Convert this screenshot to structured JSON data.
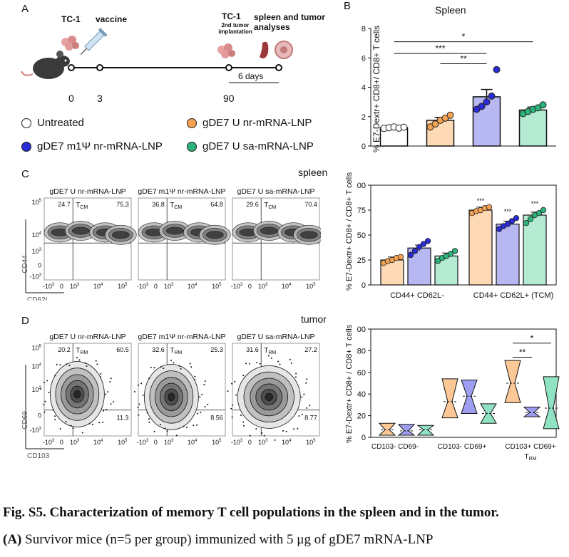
{
  "panelA": {
    "letter": "A",
    "events": [
      {
        "label": "TC-1",
        "day": "0"
      },
      {
        "label": "vaccine",
        "day": "3"
      },
      {
        "label": "TC-1",
        "sub": "2nd tumor implantation",
        "day": "90"
      },
      {
        "label": "spleen and tumor analyses",
        "day": ""
      }
    ],
    "interval_label": "6 days",
    "legend": [
      {
        "name": "Untreated",
        "color": "#ffffff"
      },
      {
        "name": "gDE7 U nr-mRNA-LNP",
        "color": "#f5a251"
      },
      {
        "name": "gDE7 m1Ψ nr-mRNA-LNP",
        "color": "#2b2bd6"
      },
      {
        "name": "gDE7 U sa-mRNA-LNP",
        "color": "#2db37a"
      }
    ]
  },
  "panelB": {
    "letter": "B",
    "title": "Spleen",
    "ylabel": "% E7-Dextr+ CD8+/ CD8+ T cells",
    "sig": [
      "*",
      "***",
      "**"
    ]
  },
  "panelC": {
    "letter": "C",
    "tissue": "spleen",
    "flow_titles": [
      "gDE7 U nr-mRNA-LNP",
      "gDE7 m1Ψ nr-mRNA-LNP",
      "gDE7 U sa-mRNA-LNP"
    ],
    "quad_ul": [
      "24.7",
      "36.8",
      "29.6"
    ],
    "quad_ur": [
      "75.3",
      "64.8",
      "70.4"
    ],
    "gate_label": "TCM",
    "xaxis": "CD62L",
    "yaxis": "CD44",
    "bar_ylabel": "% E7-Dextr+ CD8+ / CD8+ T cells",
    "groups": [
      "CD44+ CD62L-",
      "CD44+ CD62L+ (TCM)"
    ],
    "sig": [
      "***",
      "***",
      "***"
    ]
  },
  "panelD": {
    "letter": "D",
    "tissue": "tumor",
    "flow_titles": [
      "gDE7 U nr-mRNA-LNP",
      "gDE7 m1Ψ nr-mRNA-LNP",
      "gDE7 U sa-mRNA-LNP"
    ],
    "quad_ul": [
      "20.2",
      "32.6",
      "31.6"
    ],
    "quad_ur": [
      "60.5",
      "25.3",
      "27.2"
    ],
    "quad_lr": [
      "11.3",
      "8.56",
      "8.77"
    ],
    "gate_label": "TRM",
    "xaxis": "CD103",
    "yaxis": "CD69",
    "violin_ylabel": "% E7-Dextr+ CD8+ / CD8+ T cells",
    "groups": [
      "CD103- CD69-",
      "CD103- CD69+",
      "CD103+ CD69+ TRM"
    ],
    "sig": [
      "**",
      "*"
    ]
  },
  "caption": {
    "title": "Fig. S5. Characterization of memory T cell populations in the spleen and in the tumor.",
    "line2_bold": "(A)",
    "line2_text": " Survivor mice (n=5 per group) immunized with 5 μg of gDE7 mRNA-LNP"
  },
  "chart_data": [
    {
      "type": "bar",
      "title": "Spleen",
      "ylabel": "% E7-Dextr+ CD8+/ CD8+ T cells",
      "ylim": [
        0,
        8
      ],
      "categories": [
        "Untreated",
        "gDE7 U nr-mRNA-LNP",
        "gDE7 m1Ψ nr-mRNA-LNP",
        "gDE7 U sa-mRNA-LNP"
      ],
      "values": [
        1.25,
        1.75,
        3.35,
        2.45
      ],
      "errors": [
        0.05,
        0.2,
        0.5,
        0.2
      ],
      "points": [
        [
          1.2,
          1.25,
          1.3,
          1.22,
          1.28
        ],
        [
          1.3,
          1.5,
          1.75,
          1.9,
          2.1
        ],
        [
          2.5,
          2.7,
          3.0,
          3.4,
          5.2
        ],
        [
          2.2,
          2.35,
          2.5,
          2.6,
          2.8
        ]
      ],
      "colors": [
        "#ffffff",
        "#fdd9b6",
        "#b7b7f1",
        "#b5ebd3"
      ],
      "dot_colors": [
        "#ffffff",
        "#f5a251",
        "#2b2bd6",
        "#2db37a"
      ],
      "yticks": [
        0,
        2,
        4,
        6,
        8
      ]
    },
    {
      "type": "bar",
      "ylim": [
        0,
        100
      ],
      "categories": [
        "CD44+ CD62L-",
        "CD44+ CD62L+ (TCM)"
      ],
      "series": [
        {
          "name": "gDE7 U nr-mRNA-LNP",
          "values": [
            25,
            75
          ],
          "points": [
            [
              22,
              24,
              25,
              27,
              28
            ],
            [
              72,
              74,
              75,
              77,
              78
            ]
          ]
        },
        {
          "name": "gDE7 m1Ψ nr-mRNA-LNP",
          "values": [
            37,
            61
          ],
          "points": [
            [
              30,
              34,
              38,
              41,
              44
            ],
            [
              56,
              59,
              61,
              64,
              67
            ]
          ]
        },
        {
          "name": "gDE7 U sa-mRNA-LNP",
          "values": [
            29,
            70
          ],
          "points": [
            [
              24,
              27,
              29,
              31,
              34
            ],
            [
              62,
              66,
              70,
              72,
              75
            ]
          ]
        }
      ],
      "yticks": [
        0,
        25,
        50,
        75,
        100
      ]
    },
    {
      "type": "violin",
      "ylim": [
        0,
        100
      ],
      "categories": [
        "CD103- CD69-",
        "CD103- CD69+",
        "CD103+ CD69+ TRM"
      ],
      "series": [
        {
          "name": "gDE7 U nr-mRNA-LNP",
          "ranges": [
            [
              2,
              13
            ],
            [
              18,
              54
            ],
            [
              32,
              71
            ]
          ],
          "medians": [
            7,
            33,
            50
          ]
        },
        {
          "name": "gDE7 m1Ψ nr-mRNA-LNP",
          "ranges": [
            [
              2,
              12
            ],
            [
              22,
              53
            ],
            [
              19,
              28
            ]
          ],
          "medians": [
            6,
            38,
            23
          ]
        },
        {
          "name": "gDE7 U sa-mRNA-LNP",
          "ranges": [
            [
              2,
              11
            ],
            [
              13,
              31
            ],
            [
              8,
              56
            ]
          ],
          "medians": [
            7,
            22,
            27
          ]
        }
      ],
      "yticks": [
        0,
        20,
        40,
        60,
        80,
        100
      ]
    }
  ]
}
